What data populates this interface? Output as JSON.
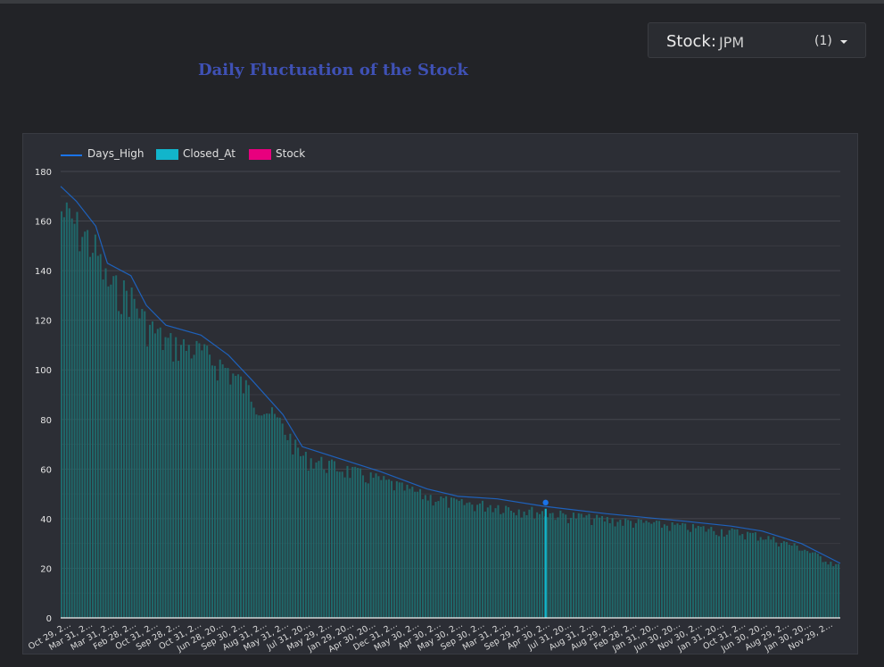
{
  "page": {
    "title": "Daily Fluctuation of the Stock"
  },
  "stock_control": {
    "label": "Stock:",
    "value": "JPM",
    "count": "(1)",
    "icon": "chevron-down-icon"
  },
  "colors": {
    "days_high": "#1a73e8",
    "closed_at": "#12b5cb",
    "stock": "#e8007e",
    "title": "#3f51b5"
  },
  "chart_data": {
    "type": "bar",
    "title": "",
    "legend": [
      "Days_High",
      "Closed_At",
      "Stock"
    ],
    "legend_position": "top-left",
    "grid": true,
    "ylim": [
      0,
      180
    ],
    "yticks": [
      0,
      20,
      40,
      60,
      80,
      100,
      120,
      140,
      160,
      180
    ],
    "xtick_labels": [
      "Oct 29, 2…",
      "Mar 31, 2…",
      "Mar 31, 2…",
      "Feb 28, 2…",
      "Oct 31, 2…",
      "Sep 28, 2…",
      "Oct 31, 2…",
      "Jun 28, 20…",
      "Sep 30, 2…",
      "Aug 31, 2…",
      "May 31, 2…",
      "Jul 31, 20…",
      "May 29, 2…",
      "Jan 29, 20…",
      "Apr 30, 20…",
      "Dec 31, 2…",
      "May 30, 2…",
      "Apr 30, 2…",
      "May 30, 2…",
      "Sep 30, 2…",
      "Mar 31, 2…",
      "Sep 29, 2…",
      "Apr 30, 2…",
      "Jul 31, 20…",
      "Aug 31, 2…",
      "Aug 29, 2…",
      "Feb 28, 2…",
      "Jan 31, 20…",
      "Jun 30, 20…",
      "Nov 30, 2…",
      "Jan 31, 20…",
      "Oct 31, 2…",
      "Jun 30, 20…",
      "Aug 29, 2…",
      "Jan 30, 20…",
      "Nov 29, 2…"
    ],
    "days_high_profile": [
      [
        0,
        174
      ],
      [
        0.02,
        168
      ],
      [
        0.045,
        158
      ],
      [
        0.06,
        143
      ],
      [
        0.09,
        138
      ],
      [
        0.11,
        126
      ],
      [
        0.135,
        118
      ],
      [
        0.18,
        114
      ],
      [
        0.215,
        106
      ],
      [
        0.245,
        96
      ],
      [
        0.285,
        82
      ],
      [
        0.31,
        69
      ],
      [
        0.36,
        64
      ],
      [
        0.41,
        59
      ],
      [
        0.47,
        52
      ],
      [
        0.51,
        49
      ],
      [
        0.56,
        48
      ],
      [
        0.62,
        45
      ],
      [
        0.7,
        42
      ],
      [
        0.8,
        39
      ],
      [
        0.86,
        37
      ],
      [
        0.9,
        35
      ],
      [
        0.95,
        30
      ],
      [
        1.0,
        22
      ]
    ],
    "highlight": {
      "position": 0.622,
      "days_high": 46.5,
      "closed_at": 44
    }
  }
}
